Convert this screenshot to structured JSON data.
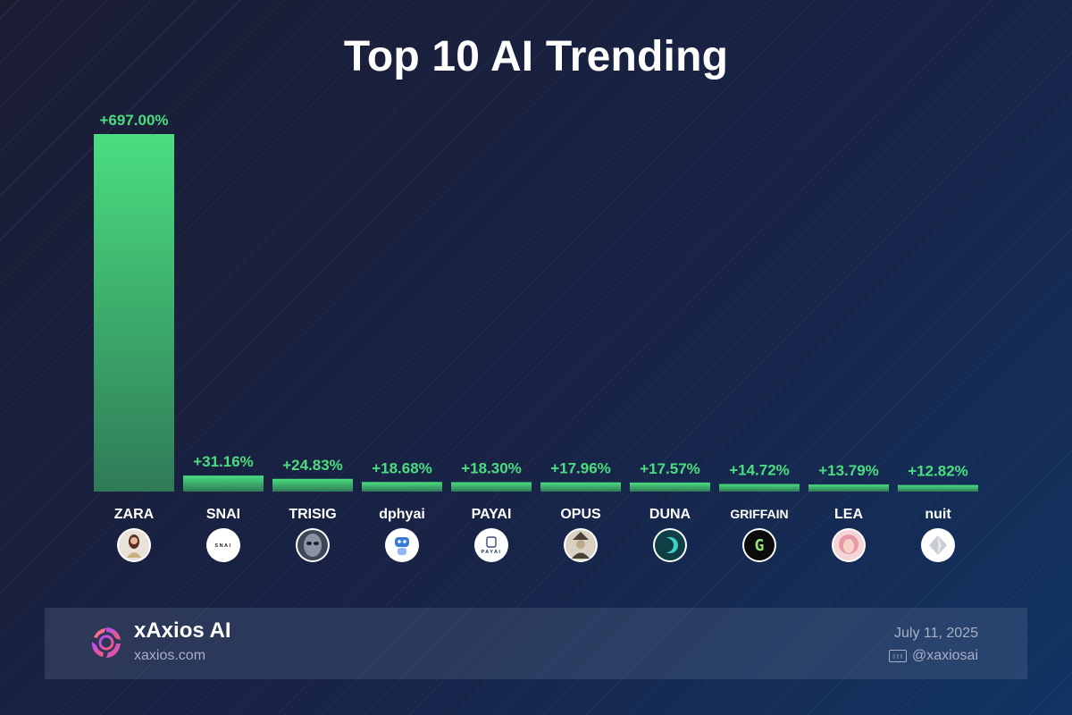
{
  "title": "Top 10 AI Trending",
  "chart_data": {
    "type": "bar",
    "title": "Top 10 AI Trending",
    "categories": [
      "ZARA",
      "SNAI",
      "TRISIG",
      "dphyai",
      "PAYAI",
      "OPUS",
      "DUNA",
      "GRIFFAIN",
      "LEA",
      "nuit"
    ],
    "values": [
      697.0,
      31.16,
      24.83,
      18.68,
      18.3,
      17.96,
      17.57,
      14.72,
      13.79,
      12.82
    ],
    "data_labels": [
      "+697.00%",
      "+31.16%",
      "+24.83%",
      "+18.68%",
      "+18.30%",
      "+17.96%",
      "+17.57%",
      "+14.72%",
      "+13.79%",
      "+12.82%"
    ],
    "unit": "%",
    "ylim": [
      0,
      697
    ],
    "grid": false,
    "legend": "none",
    "colors": {
      "bar_top": "#4ade80",
      "bar_bottom": "#2f7a57",
      "label": "#4ade80"
    },
    "avatars": [
      {
        "icon": "woman-portrait-icon",
        "bg": "#e8e2da",
        "fg": "#6b3d2e"
      },
      {
        "icon": "snai-logo-icon",
        "bg": "#ffffff",
        "fg": "#222222",
        "text": "SNAI"
      },
      {
        "icon": "alien-face-icon",
        "bg": "#3f4655",
        "fg": "#8a93a3"
      },
      {
        "icon": "robot-icon",
        "bg": "#ffffff",
        "fg": "#3a7bd5"
      },
      {
        "icon": "payai-logo-icon",
        "bg": "#ffffff",
        "fg": "#1b2a5a",
        "text": "PAYAI"
      },
      {
        "icon": "ornate-figure-icon",
        "bg": "#d9d2c4",
        "fg": "#4a4036"
      },
      {
        "icon": "moon-icon",
        "bg": "#0d3f44",
        "fg": "#3fd0c8"
      },
      {
        "icon": "pixel-g-icon",
        "bg": "#0b0b0b",
        "fg": "#9be37a",
        "text": "G"
      },
      {
        "icon": "pink-hair-girl-icon",
        "bg": "#f4d6d9",
        "fg": "#e79aa6"
      },
      {
        "icon": "crystal-icon",
        "bg": "#ffffff",
        "fg": "#c9ccd4"
      }
    ]
  },
  "footer": {
    "brand_name": "xAxios AI",
    "brand_url": "xaxios.com",
    "date": "July 11, 2025",
    "handle": "@xaxiosai",
    "handle_icon": "x-social-icon",
    "brand_icon": "xaxios-logo-icon"
  },
  "colors": {
    "background": "#182346",
    "accent": "#4ade80",
    "footer_text": "#a7b0c6"
  }
}
